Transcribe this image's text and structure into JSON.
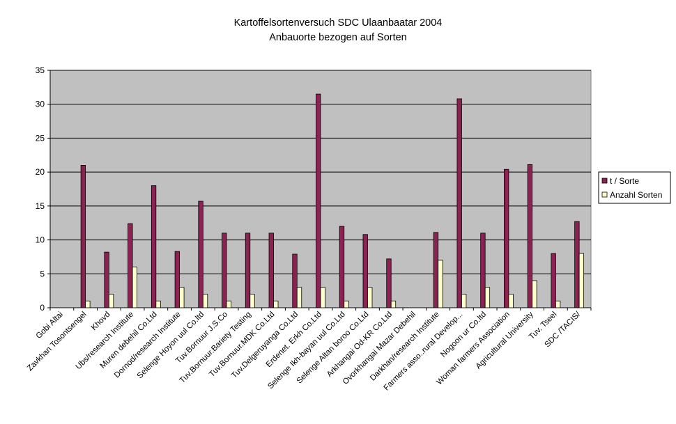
{
  "chart_data": {
    "type": "bar",
    "title": "Kartoffelsortenversuch SDC Ulaanbaatar 2004",
    "subtitle": "Anbauorte bezogen auf Sorten",
    "xlabel": "",
    "ylabel": "",
    "ylim": [
      0,
      35
    ],
    "yticks": [
      0,
      5,
      10,
      15,
      20,
      25,
      30,
      35
    ],
    "grid": true,
    "legend_position": "right",
    "categories": [
      "Gobi Altai",
      "Zavkhan Tosontsengel",
      "Khovd",
      "Ubs/research Institute",
      "Muren debehil Co.Ltd",
      "Dornod/research Institute",
      "Selenge Hoyon uul Co.ltd",
      "Tuv.Bornuur J.S.Co",
      "Tuv.Bornuur.Bariety Testing",
      "Tuv.Bornuur.MDK Co.Ltd",
      "Tuv.Delgeruyanga Co.Ltd",
      "Erdenet. Erkh Co.Ltd",
      "Selenge Ikh-bayan uul Co.Ltd",
      "Selenge Altan boroo Co.Ltd",
      "Arkhangai Od-KR Co.Ltd",
      "Ovorkhangai Mazar Debehil",
      "Darkhan/research Institute",
      "Farmers asso..rural Develop...",
      "Nogoon ur Co.ltd",
      "Woman farmers Association",
      "Agricultural University",
      "Tuv. Tseel",
      "SDC /TACIS/"
    ],
    "series": [
      {
        "name": "t / Sorte",
        "color": "#8b2252",
        "values": [
          0,
          21,
          8.2,
          12.4,
          18,
          8.3,
          15.7,
          11,
          11,
          11,
          7.9,
          31.5,
          12,
          10.8,
          7.2,
          0,
          11.1,
          30.8,
          11,
          20.4,
          21.1,
          8,
          12.7
        ]
      },
      {
        "name": "Anzahl Sorten",
        "color": "#ffffcc",
        "values": [
          0,
          1,
          2,
          6,
          1,
          3,
          2,
          1,
          2,
          1,
          3,
          3,
          1,
          3,
          1,
          0,
          7,
          2,
          3,
          2,
          4,
          1,
          8
        ]
      }
    ]
  },
  "colors": {
    "plot_background": "#c0c0c0",
    "grid_line": "#000000"
  }
}
